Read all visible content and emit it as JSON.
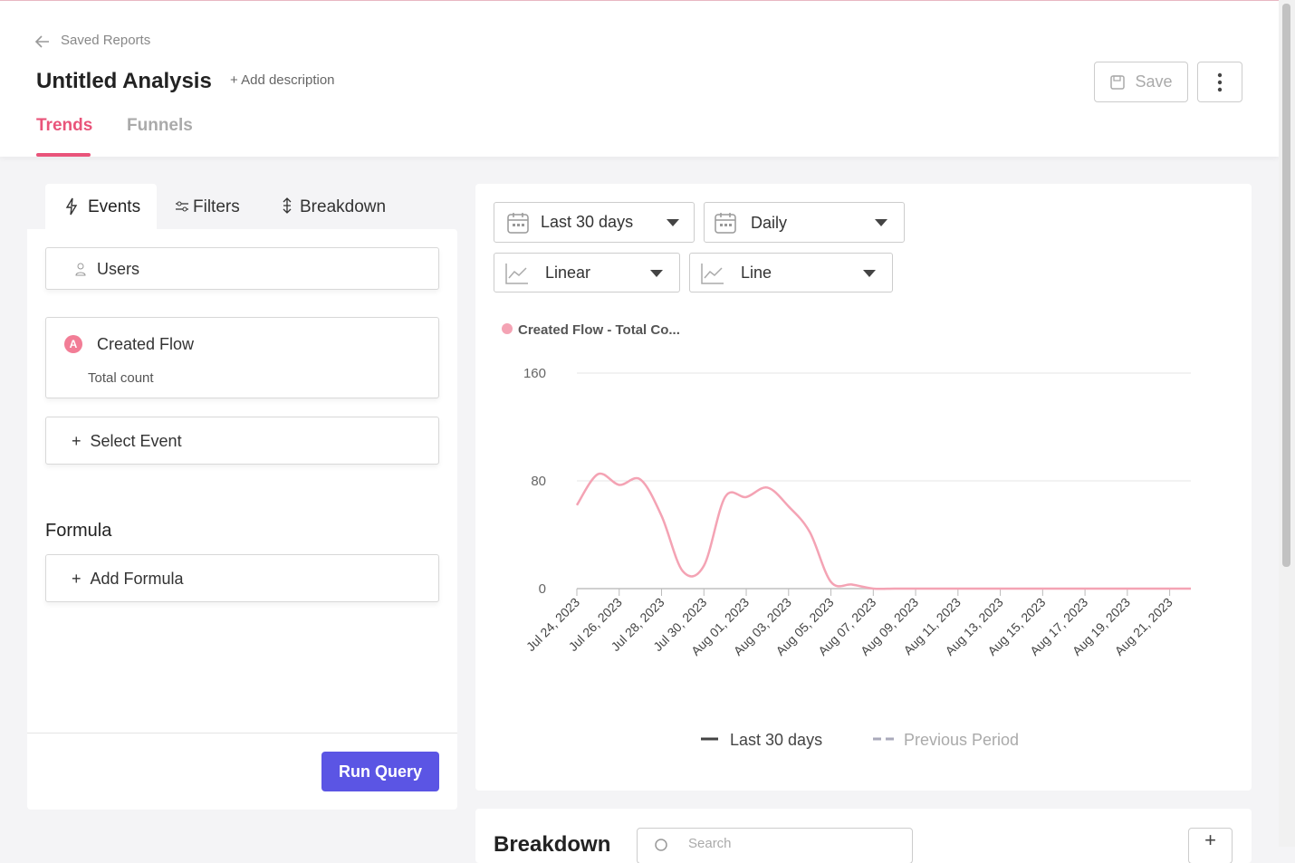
{
  "header": {
    "back_link": "Saved Reports",
    "title": "Untitled Analysis",
    "add_description": "Add description",
    "save_button": "Save",
    "tabs": [
      "Trends",
      "Funnels"
    ]
  },
  "left_panel": {
    "tabs": [
      "Events",
      "Filters",
      "Breakdown"
    ],
    "subject": "Users",
    "event": {
      "badge": "A",
      "name": "Created Flow",
      "aggregation": "Total count"
    },
    "select_event": "Select Event",
    "formula_heading": "Formula",
    "add_formula": "Add Formula",
    "run_button": "Run Query"
  },
  "controls": {
    "date_range": "Last 30 days",
    "interval": "Daily",
    "scale": "Linear",
    "chart_kind": "Line"
  },
  "chart_data": {
    "type": "line",
    "categories": [
      "Jul 24, 2023",
      null,
      "Jul 26, 2023",
      null,
      "Jul 28, 2023",
      null,
      "Jul 30, 2023",
      null,
      "Aug 01, 2023",
      null,
      "Aug 03, 2023",
      null,
      "Aug 05, 2023",
      null,
      "Aug 07, 2023",
      null,
      "Aug 09, 2023",
      null,
      "Aug 11, 2023",
      null,
      "Aug 13, 2023",
      null,
      "Aug 15, 2023",
      null,
      "Aug 17, 2023",
      null,
      "Aug 19, 2023",
      null,
      "Aug 21, 2023",
      null
    ],
    "series": [
      {
        "name": "Created Flow - Total Co...",
        "color": "#f4a3b4",
        "values": [
          62,
          85,
          77,
          81,
          54,
          13,
          17,
          68,
          68,
          75,
          61,
          42,
          5,
          3,
          0,
          0,
          0,
          0,
          0,
          0,
          0,
          0,
          0,
          0,
          0,
          0,
          0,
          0,
          0,
          0
        ]
      }
    ],
    "ylim": [
      0,
      160
    ],
    "yticks": [
      0,
      80,
      160
    ],
    "grid": true,
    "period_legend": [
      "Last 30 days",
      "Previous Period"
    ]
  },
  "breakdown_card": {
    "title": "Breakdown",
    "search_placeholder": "Search"
  }
}
